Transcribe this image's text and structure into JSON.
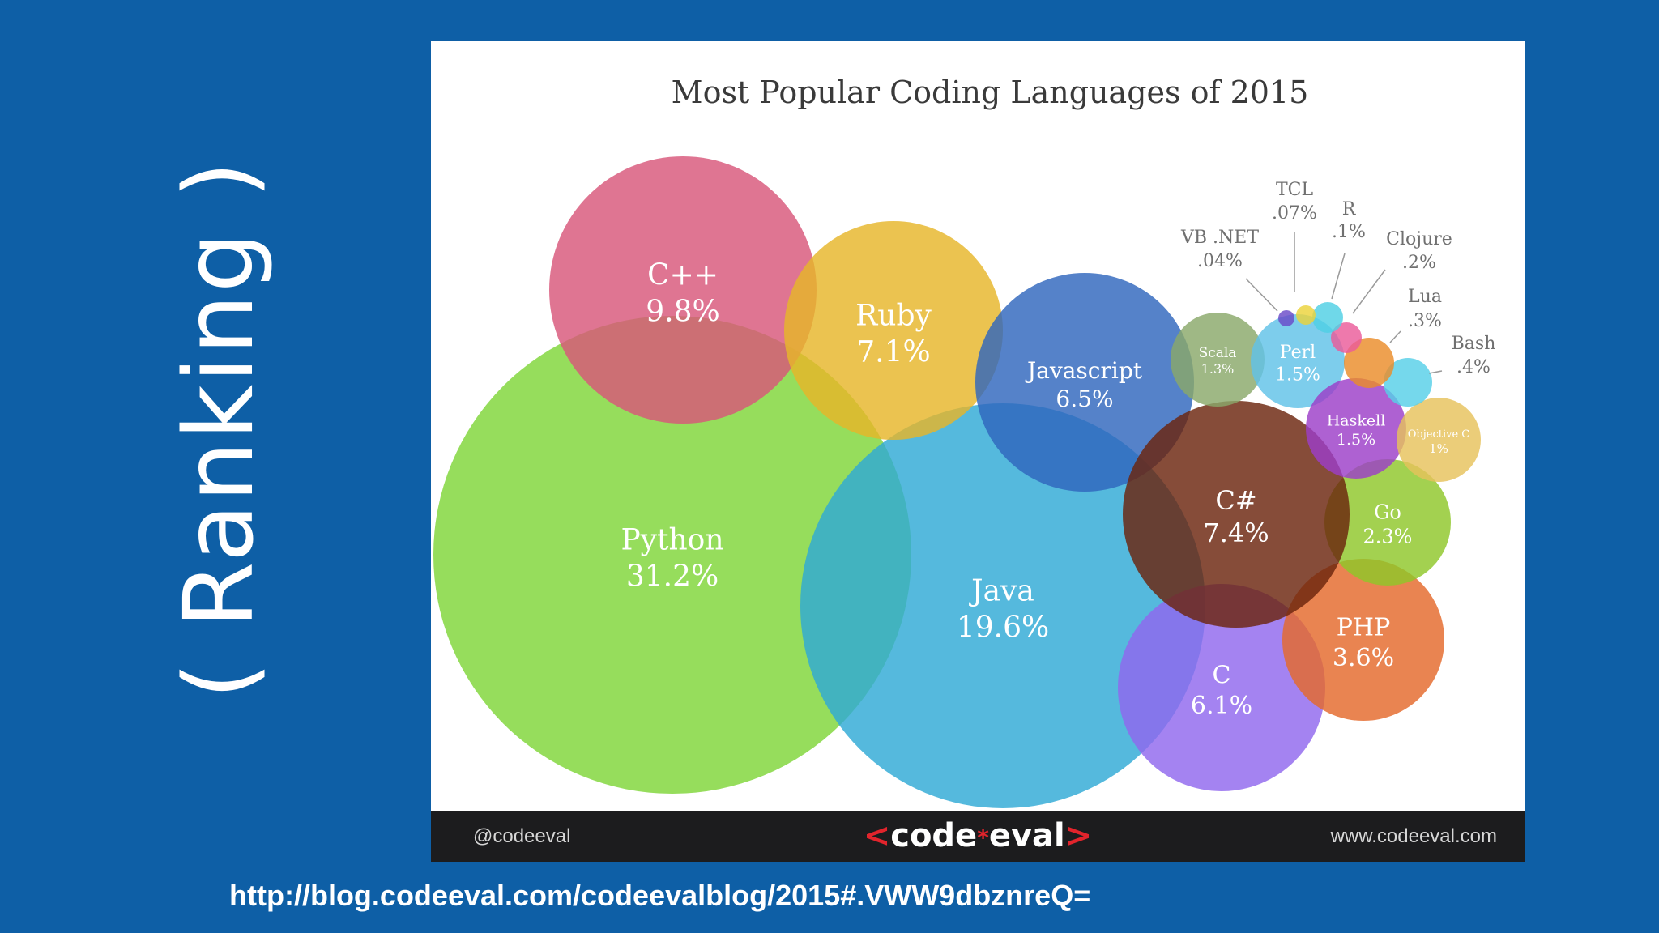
{
  "slide": {
    "side_title": "( Ranking )",
    "source_url": "http://blog.codeeval.com/codeevalblog/2015#.VWW9dbznreQ="
  },
  "footer": {
    "handle": "@codeeval",
    "logo_left": "<",
    "logo_text_a": "code",
    "logo_star": "*",
    "logo_text_b": "eval",
    "logo_right": ">",
    "site": "www.codeeval.com"
  },
  "colors": {
    "background": "#0e5fa6",
    "panel": "#ffffff",
    "footer": "#1c1c1e",
    "brand_red": "#e2242c"
  },
  "chart_data": {
    "type": "bubble",
    "title": "Most Popular Coding Languages of 2015",
    "unit": "%",
    "series": [
      {
        "name": "Python",
        "value": 31.2,
        "label": "31.2%",
        "color": "#7fd638"
      },
      {
        "name": "Java",
        "value": 19.6,
        "label": "19.6%",
        "color": "#2fa9d6"
      },
      {
        "name": "C++",
        "value": 9.8,
        "label": "9.8%",
        "color": "#d8577a"
      },
      {
        "name": "C#",
        "value": 7.4,
        "label": "7.4%",
        "color": "#6b240e"
      },
      {
        "name": "Ruby",
        "value": 7.1,
        "label": "7.1%",
        "color": "#e6b629"
      },
      {
        "name": "Javascript",
        "value": 6.5,
        "label": "6.5%",
        "color": "#2f66bd"
      },
      {
        "name": "C",
        "value": 6.1,
        "label": "6.1%",
        "color": "#9068ee"
      },
      {
        "name": "PHP",
        "value": 3.6,
        "label": "3.6%",
        "color": "#e4692b"
      },
      {
        "name": "Go",
        "value": 2.3,
        "label": "2.3%",
        "color": "#8fc72a"
      },
      {
        "name": "Scala",
        "value": 1.3,
        "label": "1.3%",
        "color": "#8aa86a"
      },
      {
        "name": "Perl",
        "value": 1.5,
        "label": "1.5%",
        "color": "#60c2e8"
      },
      {
        "name": "Haskell",
        "value": 1.5,
        "label": "1.5%",
        "color": "#9c3ec8"
      },
      {
        "name": "Objective C",
        "value": 1,
        "label": "1%",
        "color": "#e7c25c"
      },
      {
        "name": "Bash",
        "value": 0.4,
        "label": ".4%",
        "color": "#57cfe8"
      },
      {
        "name": "Lua",
        "value": 0.3,
        "label": ".3%",
        "color": "#ea8c2a"
      },
      {
        "name": "Clojure",
        "value": 0.2,
        "label": ".2%",
        "color": "#ea5b9a"
      },
      {
        "name": "R",
        "value": 0.1,
        "label": ".1%",
        "color": "#4fd0e4"
      },
      {
        "name": "TCL",
        "value": 0.07,
        "label": ".07%",
        "color": "#ecd33a"
      },
      {
        "name": "VB .NET",
        "value": 0.04,
        "label": ".04%",
        "color": "#6a4ac8"
      }
    ]
  }
}
